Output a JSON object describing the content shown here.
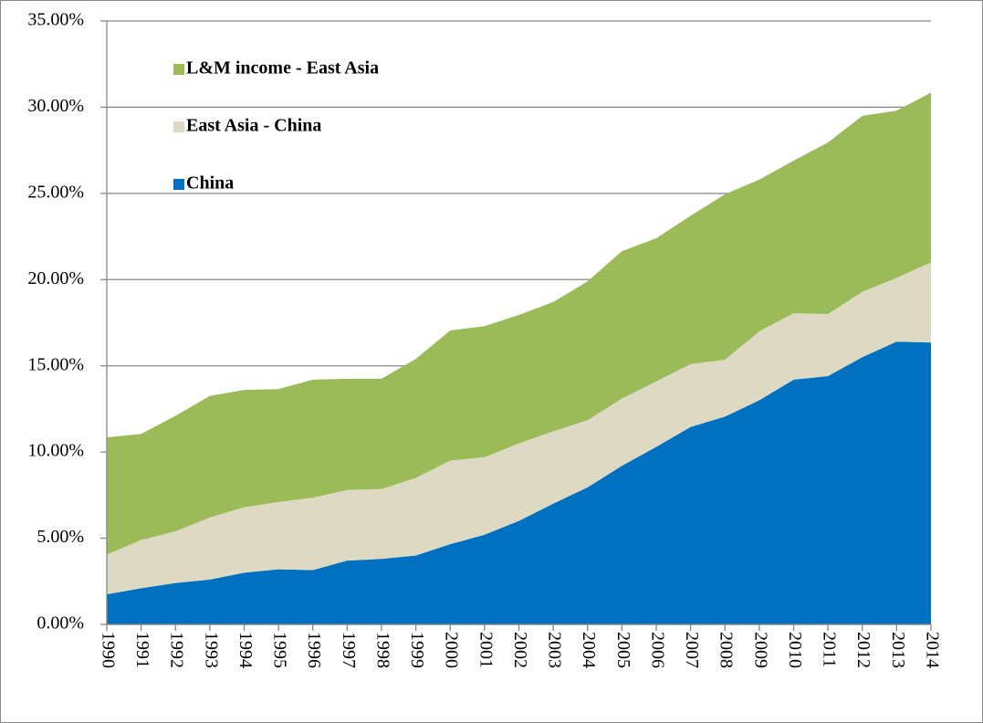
{
  "chart_data": {
    "type": "stacked_area",
    "categories": [
      "1990",
      "1991",
      "1992",
      "1993",
      "1994",
      "1995",
      "1996",
      "1997",
      "1998",
      "1999",
      "2000",
      "2001",
      "2002",
      "2003",
      "2004",
      "2005",
      "2006",
      "2007",
      "2008",
      "2009",
      "2010",
      "2011",
      "2012",
      "2013",
      "2014"
    ],
    "series": [
      {
        "name": "China",
        "color": "#0070c0",
        "values": [
          1.75,
          2.1,
          2.4,
          2.6,
          3.0,
          3.2,
          3.15,
          3.7,
          3.8,
          4.0,
          4.65,
          5.2,
          6.0,
          7.0,
          7.95,
          9.2,
          10.3,
          11.45,
          12.05,
          13.0,
          14.2,
          14.4,
          15.5,
          16.4,
          16.35
        ]
      },
      {
        "name": "East Asia - China",
        "color": "#ddd9c3",
        "values": [
          2.3,
          2.8,
          3.0,
          3.6,
          3.8,
          3.9,
          4.2,
          4.1,
          4.05,
          4.5,
          4.85,
          4.5,
          4.5,
          4.2,
          3.9,
          3.9,
          3.8,
          3.65,
          3.3,
          4.0,
          3.85,
          3.6,
          3.8,
          3.7,
          4.65
        ]
      },
      {
        "name": "L&M income - East Asia",
        "color": "#9bbb59",
        "values": [
          6.8,
          6.15,
          6.7,
          7.05,
          6.8,
          6.55,
          6.85,
          6.45,
          6.4,
          6.9,
          7.55,
          7.6,
          7.45,
          7.5,
          8.05,
          8.55,
          8.3,
          8.6,
          9.6,
          8.8,
          8.85,
          9.95,
          10.2,
          9.7,
          9.85
        ]
      }
    ],
    "ylim": [
      0,
      35
    ],
    "yticks": [
      {
        "value": 0,
        "label": "0.00%"
      },
      {
        "value": 5,
        "label": "5.00%"
      },
      {
        "value": 10,
        "label": "10.00%"
      },
      {
        "value": 15,
        "label": "15.00%"
      },
      {
        "value": 20,
        "label": "20.00%"
      },
      {
        "value": 25,
        "label": "25.00%"
      },
      {
        "value": 30,
        "label": "30.00%"
      },
      {
        "value": 35,
        "label": "35.00%"
      }
    ],
    "grid": true,
    "legend": "top-left"
  }
}
